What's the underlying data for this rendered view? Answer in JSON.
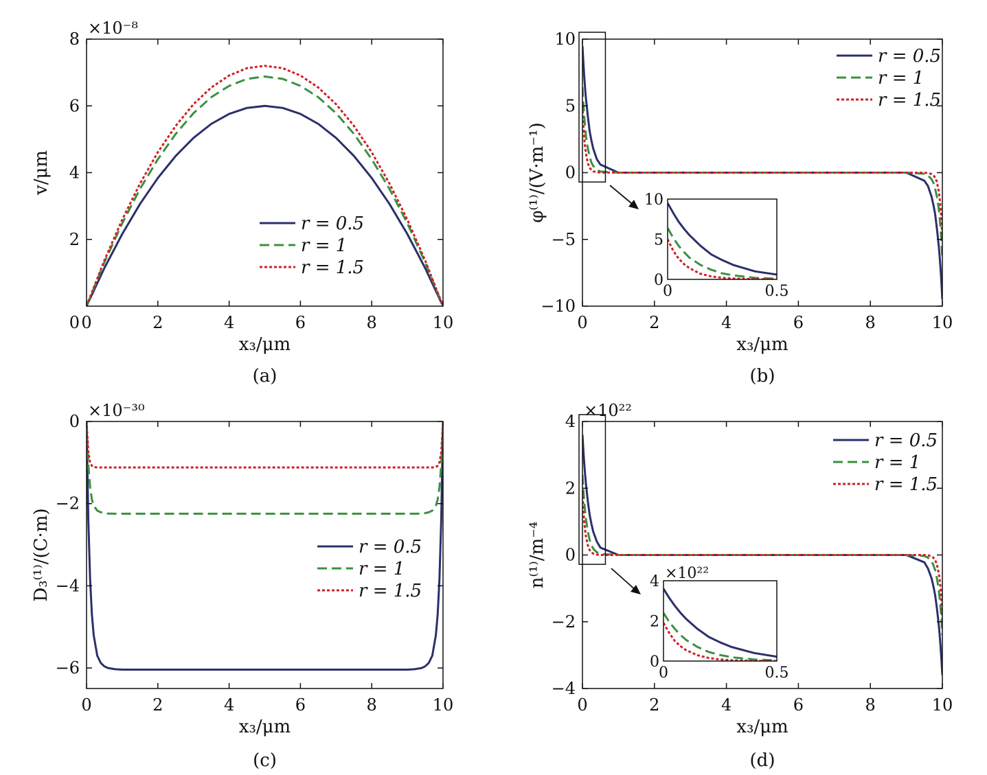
{
  "colors": {
    "r0.5": "#2b2f6b",
    "r1": "#3a9140",
    "r1.5": "#d21f26",
    "axis": "#111111"
  },
  "legend_labels": [
    "r = 0.5",
    "r = 1",
    "r = 1.5"
  ],
  "chart_data": [
    {
      "id": "a",
      "type": "line",
      "caption": "(a)",
      "xlabel": "x₃/μm",
      "ylabel": "v/μm",
      "multiplier": "×10⁻⁸",
      "xlim": [
        0,
        10
      ],
      "ylim": [
        0,
        8
      ],
      "xticks": [
        0,
        2,
        4,
        6,
        8,
        10
      ],
      "yticks": [
        2,
        4,
        6,
        8
      ],
      "legend": "center-right",
      "x": [
        0,
        0.5,
        1,
        1.5,
        2,
        2.5,
        3,
        3.5,
        4,
        4.5,
        5,
        5.5,
        6,
        6.5,
        7,
        7.5,
        8,
        8.5,
        9,
        9.5,
        10
      ],
      "series": [
        {
          "name": "r = 0.5",
          "values": [
            0,
            1.14,
            2.16,
            3.06,
            3.84,
            4.5,
            5.04,
            5.46,
            5.76,
            5.94,
            6.0,
            5.94,
            5.76,
            5.46,
            5.04,
            4.5,
            3.84,
            3.06,
            2.16,
            1.14,
            0
          ]
        },
        {
          "name": "r = 1",
          "values": [
            0,
            1.31,
            2.48,
            3.51,
            4.4,
            5.16,
            5.78,
            6.26,
            6.6,
            6.81,
            6.88,
            6.81,
            6.6,
            6.26,
            5.78,
            5.16,
            4.4,
            3.51,
            2.48,
            1.31,
            0
          ]
        },
        {
          "name": "r = 1.5",
          "values": [
            0,
            1.37,
            2.59,
            3.67,
            4.61,
            5.4,
            6.05,
            6.55,
            6.91,
            7.13,
            7.2,
            7.13,
            6.91,
            6.55,
            6.05,
            5.4,
            4.61,
            3.67,
            2.59,
            1.37,
            0
          ]
        }
      ]
    },
    {
      "id": "b",
      "type": "line",
      "caption": "(b)",
      "xlabel": "x₃/μm",
      "ylabel": "φ⁽¹⁾/(V·m⁻¹)",
      "multiplier": "",
      "xlim": [
        0,
        10
      ],
      "ylim": [
        -10,
        10
      ],
      "xticks": [
        0,
        2,
        4,
        6,
        8,
        10
      ],
      "yticks": [
        -10,
        -5,
        0,
        5,
        10
      ],
      "legend": "top-right",
      "x": [
        0,
        0.025,
        0.05,
        0.075,
        0.1,
        0.15,
        0.2,
        0.25,
        0.3,
        0.4,
        0.5,
        1,
        2,
        3,
        4,
        5,
        6,
        7,
        8,
        9,
        9.5,
        9.6,
        9.7,
        9.75,
        9.8,
        9.85,
        9.9,
        9.925,
        9.95,
        9.975,
        10
      ],
      "series": [
        {
          "name": "r = 0.5",
          "values": [
            9.5,
            8.3,
            7.2,
            6.3,
            5.5,
            4.2,
            3.1,
            2.4,
            1.8,
            1.0,
            0.6,
            0,
            0,
            0,
            0,
            0,
            0,
            0,
            0,
            0,
            -0.6,
            -1.0,
            -1.8,
            -2.4,
            -3.1,
            -4.2,
            -5.5,
            -6.3,
            -7.2,
            -8.3,
            -9.5
          ]
        },
        {
          "name": "r = 1",
          "values": [
            6.4,
            5.2,
            4.2,
            3.4,
            2.7,
            1.8,
            1.2,
            0.75,
            0.5,
            0.2,
            0.08,
            0,
            0,
            0,
            0,
            0,
            0,
            0,
            0,
            0,
            -0.08,
            -0.2,
            -0.5,
            -0.75,
            -1.2,
            -1.8,
            -2.7,
            -3.4,
            -4.2,
            -5.2,
            -6.4
          ]
        },
        {
          "name": "r = 1.5",
          "values": [
            5.0,
            3.6,
            2.6,
            1.9,
            1.4,
            0.7,
            0.37,
            0.19,
            0.1,
            0.03,
            0.01,
            0,
            0,
            0,
            0,
            0,
            0,
            0,
            0,
            0,
            -0.01,
            -0.03,
            -0.1,
            -0.19,
            -0.37,
            -0.7,
            -1.4,
            -1.9,
            -2.6,
            -3.6,
            -5.0
          ]
        }
      ],
      "inset": {
        "xlim": [
          0,
          0.5
        ],
        "ylim": [
          0,
          10
        ],
        "xticks": [
          0,
          0.5
        ],
        "yticks": [
          0,
          5,
          10
        ],
        "multiplier": ""
      }
    },
    {
      "id": "c",
      "type": "line",
      "caption": "(c)",
      "xlabel": "x₃/μm",
      "ylabel": "D₃⁽¹⁾/(C·m)",
      "multiplier": "×10⁻³⁰",
      "xlim": [
        0,
        10
      ],
      "ylim": [
        -6.5,
        0
      ],
      "xticks": [
        0,
        2,
        4,
        6,
        8,
        10
      ],
      "yticks": [
        -6,
        -4,
        -2,
        0
      ],
      "legend": "center-right",
      "x": [
        0,
        0.05,
        0.1,
        0.15,
        0.2,
        0.3,
        0.4,
        0.5,
        0.6,
        0.8,
        1,
        2,
        3,
        4,
        5,
        6,
        7,
        8,
        9,
        9.2,
        9.4,
        9.5,
        9.6,
        9.7,
        9.8,
        9.85,
        9.9,
        9.95,
        10
      ],
      "series": [
        {
          "name": "r = 0.5",
          "values": [
            0,
            -2.4,
            -3.85,
            -4.7,
            -5.2,
            -5.7,
            -5.88,
            -5.96,
            -6.0,
            -6.03,
            -6.04,
            -6.04,
            -6.04,
            -6.04,
            -6.04,
            -6.04,
            -6.04,
            -6.04,
            -6.04,
            -6.03,
            -6.0,
            -5.96,
            -5.88,
            -5.7,
            -5.2,
            -4.7,
            -3.85,
            -2.4,
            0
          ]
        },
        {
          "name": "r = 1",
          "values": [
            0,
            -1.05,
            -1.6,
            -1.9,
            -2.05,
            -2.17,
            -2.21,
            -2.23,
            -2.24,
            -2.245,
            -2.245,
            -2.245,
            -2.245,
            -2.245,
            -2.245,
            -2.245,
            -2.245,
            -2.245,
            -2.245,
            -2.245,
            -2.24,
            -2.23,
            -2.21,
            -2.17,
            -2.05,
            -1.9,
            -1.6,
            -1.05,
            0
          ]
        },
        {
          "name": "r = 1.5",
          "values": [
            0,
            -0.75,
            -1.0,
            -1.08,
            -1.11,
            -1.12,
            -1.12,
            -1.12,
            -1.12,
            -1.12,
            -1.12,
            -1.12,
            -1.12,
            -1.12,
            -1.12,
            -1.12,
            -1.12,
            -1.12,
            -1.12,
            -1.12,
            -1.12,
            -1.12,
            -1.12,
            -1.12,
            -1.11,
            -1.08,
            -1.0,
            -0.75,
            0
          ]
        }
      ]
    },
    {
      "id": "d",
      "type": "line",
      "caption": "(d)",
      "xlabel": "x₃/μm",
      "ylabel": "n⁽¹⁾/m⁻⁴",
      "multiplier": "×10²²",
      "xlim": [
        0,
        10
      ],
      "ylim": [
        -4,
        4
      ],
      "xticks": [
        0,
        2,
        4,
        6,
        8,
        10
      ],
      "yticks": [
        -4,
        -2,
        0,
        2,
        4
      ],
      "legend": "top-right",
      "x": [
        0,
        0.025,
        0.05,
        0.075,
        0.1,
        0.15,
        0.2,
        0.25,
        0.3,
        0.4,
        0.5,
        1,
        2,
        3,
        4,
        5,
        6,
        7,
        8,
        9,
        9.5,
        9.6,
        9.7,
        9.75,
        9.8,
        9.85,
        9.9,
        9.925,
        9.95,
        9.975,
        10
      ],
      "series": [
        {
          "name": "r = 0.5",
          "values": [
            3.6,
            3.15,
            2.75,
            2.4,
            2.1,
            1.6,
            1.2,
            0.93,
            0.7,
            0.4,
            0.22,
            0,
            0,
            0,
            0,
            0,
            0,
            0,
            0,
            0,
            -0.22,
            -0.4,
            -0.7,
            -0.93,
            -1.2,
            -1.6,
            -2.1,
            -2.4,
            -2.75,
            -3.15,
            -3.6
          ]
        },
        {
          "name": "r = 1",
          "values": [
            2.4,
            1.95,
            1.6,
            1.3,
            1.05,
            0.7,
            0.45,
            0.3,
            0.19,
            0.08,
            0.03,
            0,
            0,
            0,
            0,
            0,
            0,
            0,
            0,
            0,
            -0.03,
            -0.08,
            -0.19,
            -0.3,
            -0.45,
            -0.7,
            -1.05,
            -1.3,
            -1.6,
            -1.95,
            -2.4
          ]
        },
        {
          "name": "r = 1.5",
          "values": [
            1.9,
            1.4,
            1.0,
            0.74,
            0.54,
            0.29,
            0.15,
            0.08,
            0.04,
            0.01,
            0,
            0,
            0,
            0,
            0,
            0,
            0,
            0,
            0,
            0,
            0,
            -0.01,
            -0.04,
            -0.08,
            -0.15,
            -0.29,
            -0.54,
            -0.74,
            -1.0,
            -1.4,
            -1.9
          ]
        }
      ],
      "inset": {
        "xlim": [
          0,
          0.5
        ],
        "ylim": [
          0,
          4
        ],
        "xticks": [
          0,
          0.5
        ],
        "yticks": [
          0,
          2,
          4
        ],
        "multiplier": "×10²²"
      }
    }
  ]
}
